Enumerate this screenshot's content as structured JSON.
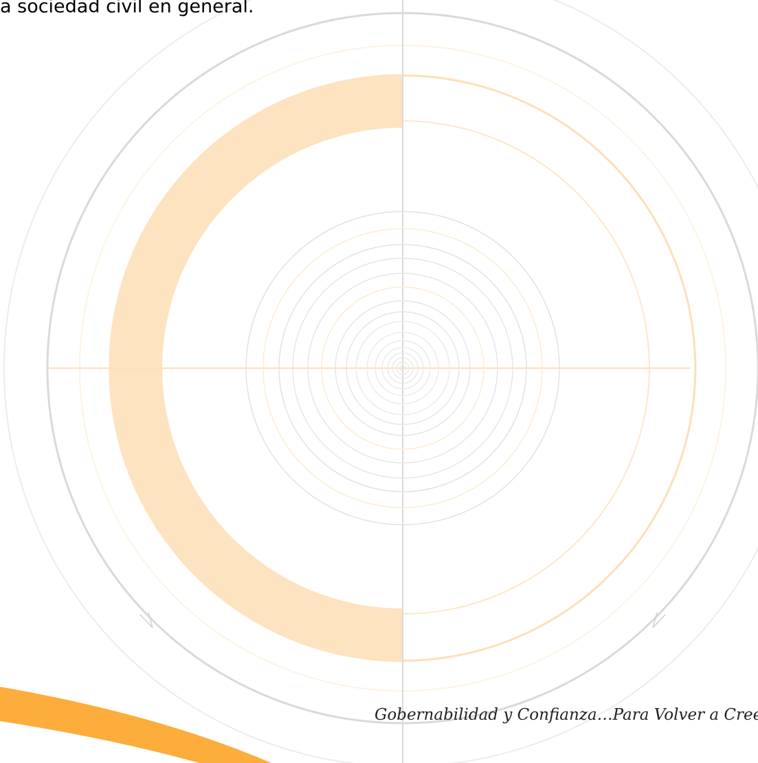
{
  "document": {
    "body_text_fragment": "a sociedad civil en general.",
    "footer_tagline": "Gobernabilidad y Confianza…Para Volver a Creer…"
  },
  "decoration": {
    "name": "concentric-target-watermark",
    "colors": {
      "gray_ring": "#d9d9d9",
      "light_gray_ring": "#e8e8e8",
      "peach_fill": "#fde3c0",
      "peach_line": "#fde0b8",
      "orange_swoosh": "#fcad3c"
    }
  }
}
